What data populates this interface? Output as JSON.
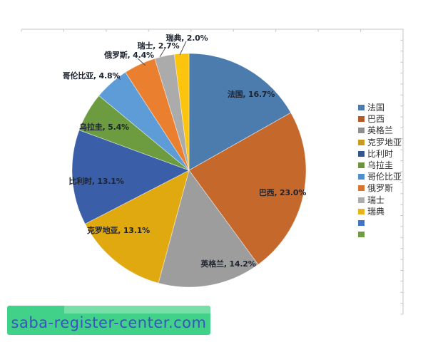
{
  "chart_data": {
    "type": "pie",
    "title": "",
    "label_format": "{label}, {value}%",
    "legend_position": "right",
    "series": [
      {
        "label": "法国",
        "value": 16.7,
        "color": "#4b7cad"
      },
      {
        "label": "巴西",
        "value": 23.0,
        "color": "#c5682c"
      },
      {
        "label": "英格兰",
        "value": 14.2,
        "color": "#9d9d9d"
      },
      {
        "label": "克罗地亚",
        "value": 13.1,
        "color": "#e1a910"
      },
      {
        "label": "比利时",
        "value": 13.1,
        "color": "#3a5ea8"
      },
      {
        "label": "乌拉圭",
        "value": 5.4,
        "color": "#6c9c3f"
      },
      {
        "label": "哥伦比亚",
        "value": 4.8,
        "color": "#5d9cd7"
      },
      {
        "label": "俄罗斯",
        "value": 4.4,
        "color": "#ea802f"
      },
      {
        "label": "瑞士",
        "value": 2.7,
        "color": "#ababab"
      },
      {
        "label": "瑞典",
        "value": 2.0,
        "color": "#fdc40d"
      }
    ],
    "legend": [
      {
        "label": "法国",
        "color": "#4b7cad"
      },
      {
        "label": "巴西",
        "color": "#b35b2b"
      },
      {
        "label": "英格兰",
        "color": "#8f8f8f"
      },
      {
        "label": "克罗地亚",
        "color": "#c89a1d"
      },
      {
        "label": "比利时",
        "color": "#33568f"
      },
      {
        "label": "乌拉圭",
        "color": "#6f9240"
      },
      {
        "label": "哥伦比亚",
        "color": "#4e8fcc"
      },
      {
        "label": "俄罗斯",
        "color": "#d9742f"
      },
      {
        "label": "瑞士",
        "color": "#acacac"
      },
      {
        "label": "瑞典",
        "color": "#e7b41e"
      },
      {
        "label": "",
        "color": "#4472c4"
      },
      {
        "label": "",
        "color": "#6f9c42"
      }
    ],
    "border_color": "#c6c6c6",
    "leader_line_color": "#555555"
  },
  "watermark": {
    "text": "saba-register-center.com",
    "bg_color": "#42d189",
    "accent_color": "#79dfa8",
    "text_color": "#3a51c4"
  }
}
